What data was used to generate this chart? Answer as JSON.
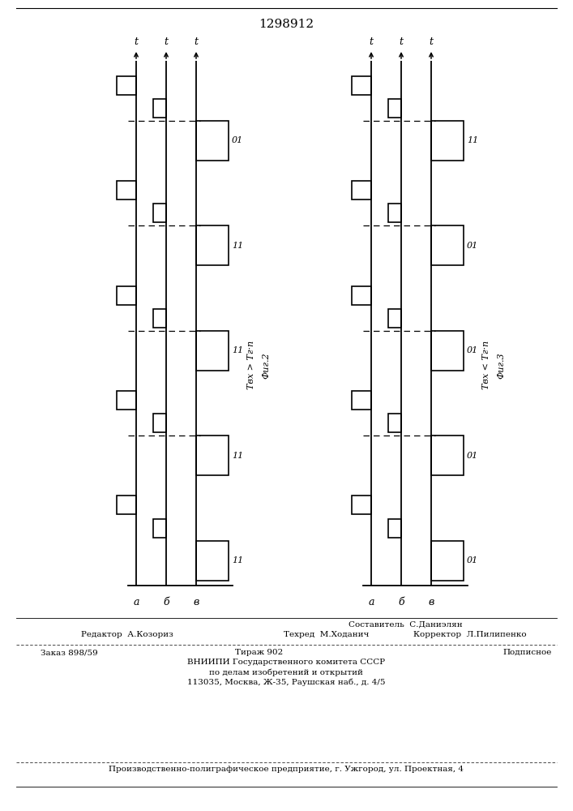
{
  "title": "1298912",
  "fig2_ann1": "Tвх > Tг·п",
  "fig2_ann2": "Фиг.2",
  "fig3_ann1": "Tвх < Tг·п",
  "fig3_ann2": "Фиг.3",
  "label_a": "а",
  "label_b": "б",
  "label_v": "в",
  "label_t": "t",
  "footer": {
    "line_sostavitel": "Составитель  С.Даниэлян",
    "line_editor": "Редактор  А.Козориз",
    "line_tehred": "Техред  М.Ходанич",
    "line_korrektor": "Корректор  Л.Пилипенко",
    "line_zakaz": "Заказ 898/59",
    "line_tirazh": "Тираж 902",
    "line_podpisnoe": "Подписное",
    "line_vniipі": "ВНИИПИ Государственного комитета СССР",
    "line_po": "по делам изобретений и открытий",
    "line_addr": "113035, Москва, Ж-35, Раушская наб., д. 4/5",
    "line_predpr": "Производственно-полиграфическое предприятие, г. Ужгород, ул. Проектная, 4"
  }
}
